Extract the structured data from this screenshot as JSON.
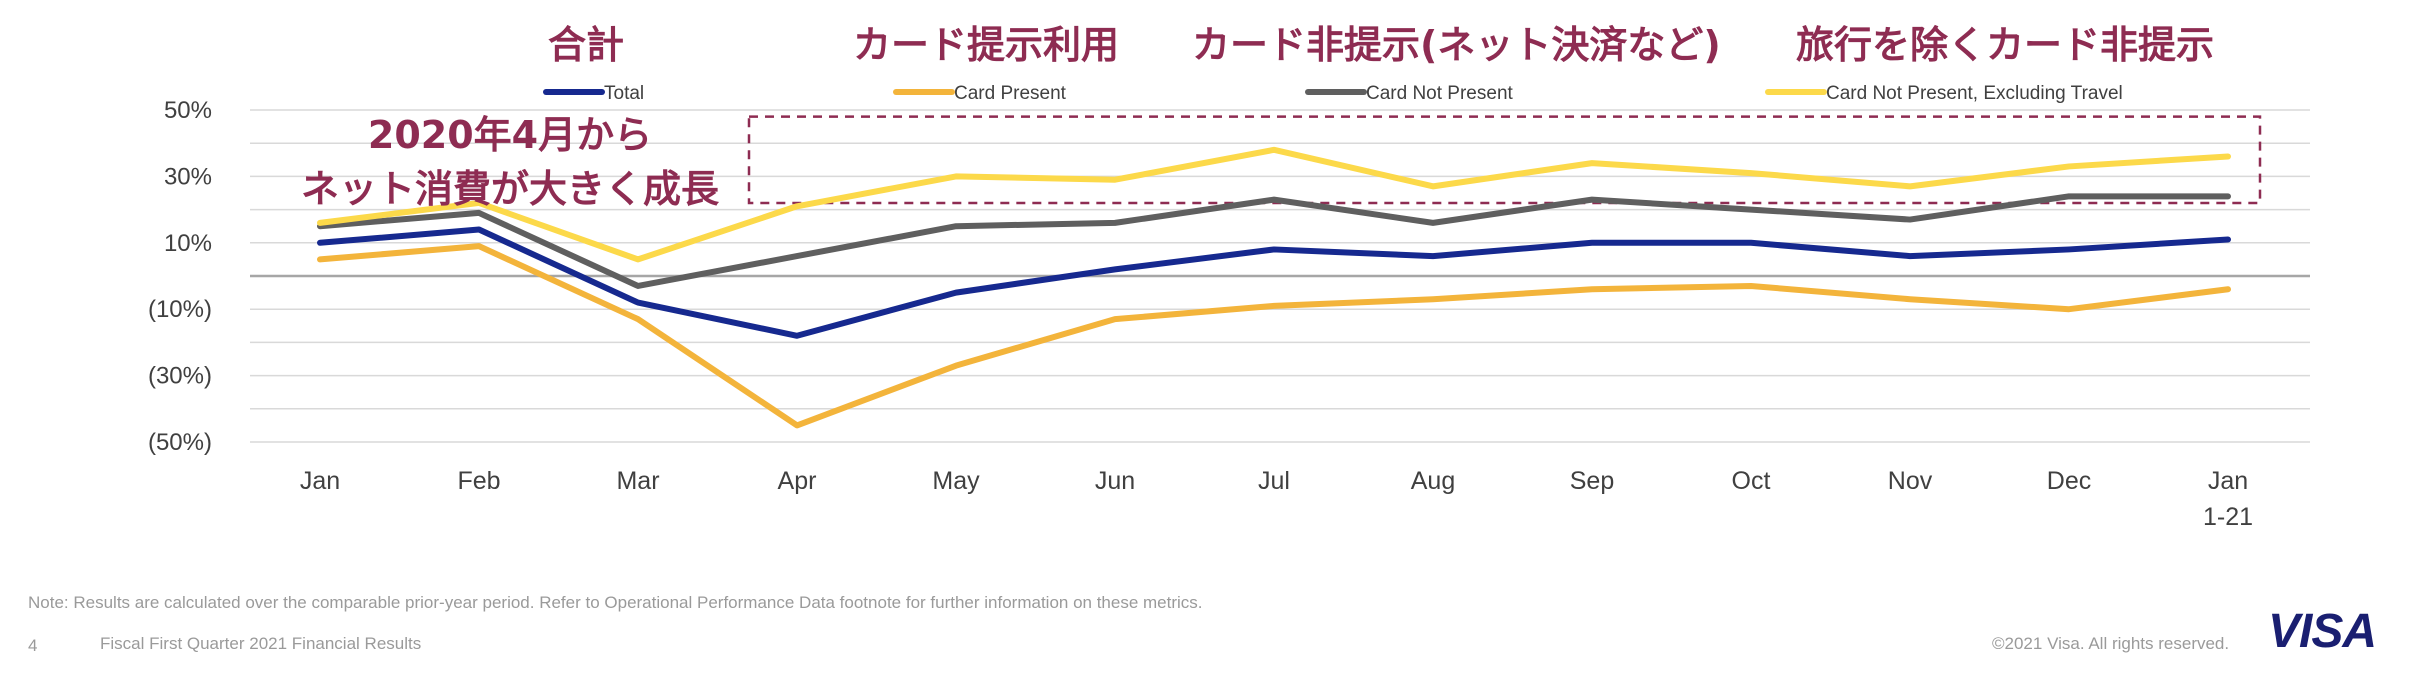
{
  "header_labels": [
    {
      "text": "合計",
      "color": "#8e2c52"
    },
    {
      "text": "カード提示利用",
      "color": "#8e2c52"
    },
    {
      "text": "カード非提示(ネット決済など)",
      "color": "#8e2c52"
    },
    {
      "text": "旅行を除くカード非提示",
      "color": "#8e2c52"
    }
  ],
  "annotation": {
    "line1": "2020年4月から",
    "line2": "ネット消費が大きく成長",
    "highlight_from": "Apr",
    "highlight_to": "Jan 1-21",
    "highlight_range": [
      22,
      48
    ],
    "color": "#8e2c52"
  },
  "chart_data": {
    "type": "line",
    "categories": [
      "Jan",
      "Feb",
      "Mar",
      "Apr",
      "May",
      "Jun",
      "Jul",
      "Aug",
      "Sep",
      "Oct",
      "Nov",
      "Dec",
      "Jan 1-21"
    ],
    "x_tick_lines": [
      [
        "Jan"
      ],
      [
        "Feb"
      ],
      [
        "Mar"
      ],
      [
        "Apr"
      ],
      [
        "May"
      ],
      [
        "Jun"
      ],
      [
        "Jul"
      ],
      [
        "Aug"
      ],
      [
        "Sep"
      ],
      [
        "Oct"
      ],
      [
        "Nov"
      ],
      [
        "Dec"
      ],
      [
        "Jan",
        "1-21"
      ]
    ],
    "y_ticks": [
      50,
      30,
      10,
      -10,
      -30,
      -50
    ],
    "y_tick_labels": [
      "50%",
      "30%",
      "10%",
      "(10%)",
      "(30%)",
      "(50%)"
    ],
    "ylim": [
      -50,
      50
    ],
    "grid": true,
    "legend_position": "top",
    "series": [
      {
        "name": "Total",
        "color": "#16298f",
        "values": [
          10,
          14,
          -8,
          -18,
          -5,
          2,
          8,
          6,
          10,
          10,
          6,
          8,
          11
        ]
      },
      {
        "name": "Card Present",
        "color": "#f3b43b",
        "values": [
          5,
          9,
          -13,
          -45,
          -27,
          -13,
          -9,
          -7,
          -4,
          -3,
          -7,
          -10,
          -4
        ]
      },
      {
        "name": "Card Not Present",
        "color": "#5f5f5f",
        "values": [
          15,
          19,
          -3,
          6,
          15,
          16,
          23,
          16,
          23,
          20,
          17,
          24,
          24
        ]
      },
      {
        "name": "Card Not Present, Excluding Travel",
        "color": "#fcd94a",
        "values": [
          16,
          22,
          5,
          21,
          30,
          29,
          38,
          27,
          34,
          31,
          27,
          33,
          36
        ]
      }
    ]
  },
  "footer": {
    "note": "Note: Results are calculated over the comparable prior-year period. Refer to Operational Performance Data footnote for further information on these metrics.",
    "page_number": "4",
    "title": "Fiscal First Quarter 2021 Financial Results",
    "copyright": "©2021 Visa. All rights reserved.",
    "logo_text": "VISA"
  }
}
